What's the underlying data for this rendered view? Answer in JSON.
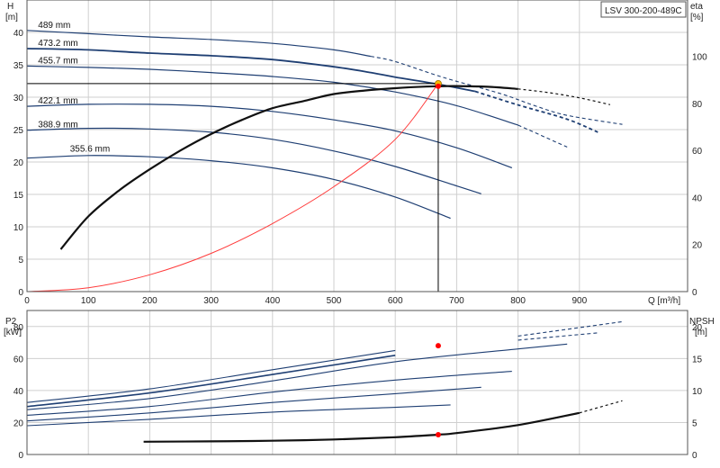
{
  "chart_data": [
    {
      "type": "line",
      "panel": "head-efficiency",
      "title": "LSV 300-200-489C",
      "xlabel": "Q [m³/h]",
      "ylabel": [
        "H",
        "[m]"
      ],
      "ylabel_right": [
        "eta",
        "[%]"
      ],
      "xlim": [
        0,
        1000
      ],
      "ylim": [
        0,
        45
      ],
      "ylim_right": [
        0,
        124
      ],
      "x_ticks": [
        0,
        100,
        200,
        300,
        400,
        500,
        600,
        700,
        800,
        900
      ],
      "y_ticks": [
        0,
        5,
        10,
        15,
        20,
        25,
        30,
        35,
        40
      ],
      "y_right_ticks": [
        0,
        20,
        40,
        60,
        80,
        100
      ],
      "grid": true,
      "colors": {
        "curve": "#1f3f73",
        "system": "#ff3b3b",
        "efficiency": "#111111",
        "marker": "#ff0000",
        "duty": "#f5b800"
      },
      "head_curves": [
        {
          "label": "489 mm",
          "x": [
            0,
            100,
            200,
            300,
            400,
            500,
            560,
            600,
            680,
            770,
            830,
            880,
            970
          ],
          "y": [
            40.3,
            39.8,
            39.3,
            38.9,
            38.3,
            37.3,
            36.3,
            35.5,
            33.0,
            30.6,
            28.6,
            27.2,
            25.8
          ]
        },
        {
          "label": "473.2 mm",
          "x": [
            0,
            100,
            200,
            300,
            400,
            500,
            560,
            600,
            670,
            730,
            800,
            880,
            930
          ],
          "y": [
            37.5,
            37.3,
            36.8,
            36.4,
            35.8,
            34.7,
            33.8,
            33.1,
            32.0,
            30.9,
            28.8,
            26.6,
            24.6
          ]
        },
        {
          "label": "455.7 mm",
          "x": [
            0,
            100,
            200,
            300,
            400,
            500,
            600,
            700,
            800,
            880
          ],
          "y": [
            34.8,
            34.6,
            34.3,
            33.8,
            33.2,
            32.3,
            30.8,
            28.7,
            25.7,
            22.3
          ]
        },
        {
          "label": "422.1 mm",
          "x": [
            0,
            100,
            200,
            300,
            400,
            500,
            600,
            700,
            790
          ],
          "y": [
            28.6,
            28.9,
            28.9,
            28.6,
            27.8,
            26.5,
            24.8,
            22.2,
            19.1
          ]
        },
        {
          "label": "388.9 mm",
          "x": [
            0,
            100,
            200,
            300,
            400,
            500,
            600,
            700,
            740
          ],
          "y": [
            24.9,
            25.2,
            25.1,
            24.6,
            23.5,
            21.7,
            19.3,
            16.3,
            15.1
          ]
        },
        {
          "label": "355.6 mm",
          "x": [
            0,
            100,
            200,
            300,
            400,
            500,
            600,
            690
          ],
          "y": [
            20.6,
            21.0,
            20.8,
            20.2,
            19.1,
            17.3,
            14.6,
            11.3
          ]
        }
      ],
      "efficiency_curve": {
        "x": [
          55,
          100,
          150,
          200,
          250,
          300,
          350,
          400,
          450,
          500,
          550,
          600,
          650,
          670,
          700,
          750,
          800,
          850,
          900,
          950
        ],
        "eta": [
          18,
          32,
          43,
          52,
          60,
          67,
          73,
          78,
          81,
          84,
          85.5,
          86.5,
          87.2,
          87.3,
          87.4,
          87.1,
          86.2,
          84.6,
          82.4,
          79.5
        ]
      },
      "system_curve": {
        "x": [
          0,
          100,
          200,
          300,
          400,
          500,
          600,
          670
        ],
        "y": [
          0,
          0.6,
          2.6,
          5.9,
          10.5,
          16.2,
          23.5,
          32.1
        ]
      },
      "duty_point": {
        "x": 670,
        "y": 32.1,
        "eta": 87.3
      }
    },
    {
      "type": "line",
      "panel": "power-npsh",
      "xlabel": "",
      "ylabel": [
        "P2",
        "[kW]"
      ],
      "ylabel_right": [
        "NPSH",
        "[m]"
      ],
      "xlim": [
        0,
        1000
      ],
      "ylim": [
        0,
        90
      ],
      "ylim_right": [
        0,
        22.5
      ],
      "y_ticks": [
        0,
        20,
        40,
        60,
        80
      ],
      "y_right_ticks": [
        0,
        5,
        10,
        15,
        20
      ],
      "grid": true,
      "power_curves": [
        {
          "label": "489 mm",
          "x": [
            0,
            200,
            400,
            600,
            800,
            970
          ],
          "p2": [
            32.5,
            41,
            53,
            65,
            74,
            83
          ]
        },
        {
          "label": "473.2 mm",
          "x": [
            0,
            200,
            400,
            600,
            800,
            930
          ],
          "p2": [
            30,
            38.5,
            50,
            62,
            71.5,
            76
          ]
        },
        {
          "label": "455.7 mm",
          "x": [
            0,
            200,
            400,
            600,
            800,
            880
          ],
          "p2": [
            28,
            35,
            46,
            58,
            66,
            69
          ]
        },
        {
          "label": "422.1 mm",
          "x": [
            0,
            200,
            400,
            600,
            790
          ],
          "p2": [
            24.5,
            30,
            39,
            46.5,
            52
          ]
        },
        {
          "label": "388.9 mm",
          "x": [
            0,
            200,
            400,
            600,
            740
          ],
          "p2": [
            21,
            26,
            32.5,
            38,
            42
          ]
        },
        {
          "label": "355.6 mm",
          "x": [
            0,
            200,
            400,
            600,
            690
          ],
          "p2": [
            18,
            22,
            26.5,
            29.5,
            31
          ]
        }
      ],
      "npsh_curve": {
        "x": [
          190,
          300,
          400,
          500,
          600,
          670,
          700,
          800,
          900,
          970
        ],
        "npsh": [
          2.0,
          2.05,
          2.15,
          2.35,
          2.7,
          3.1,
          3.35,
          4.6,
          6.5,
          8.4
        ]
      },
      "duty_point": {
        "x": 670,
        "p2": 68,
        "npsh": 3.1
      }
    }
  ]
}
